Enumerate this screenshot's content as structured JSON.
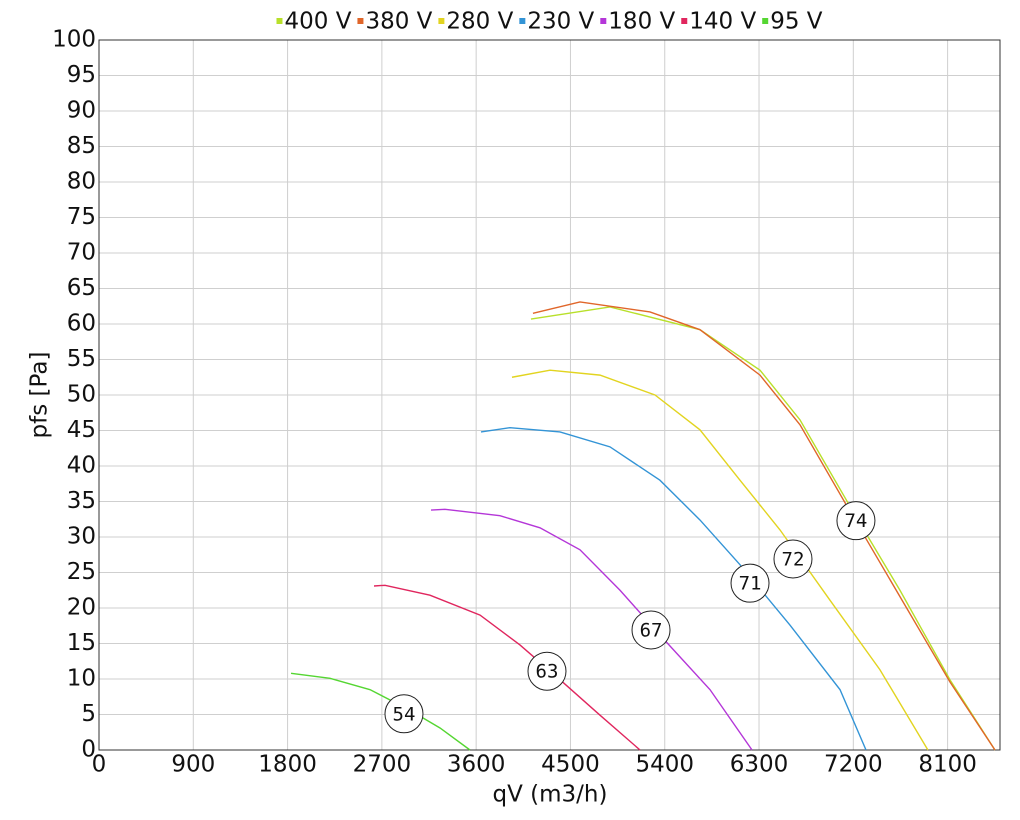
{
  "chart_data": {
    "type": "line",
    "x_label": "qV (m3/h)",
    "y_label": "pfs [Pa]",
    "xlim": [
      0,
      8600
    ],
    "ylim": [
      0,
      100
    ],
    "xticks": [
      0,
      900,
      1800,
      2700,
      3600,
      4500,
      5400,
      6300,
      7200,
      8100
    ],
    "yticks": [
      0,
      5,
      10,
      15,
      20,
      25,
      30,
      35,
      40,
      45,
      50,
      55,
      60,
      65,
      70,
      75,
      80,
      85,
      90,
      95,
      100
    ],
    "grid": true,
    "legend": "top",
    "series": [
      {
        "name": "400 V",
        "color": "#b8e02a",
        "x": [
          4123,
          4877,
          5736,
          6309,
          6691,
          7216,
          7645,
          8122,
          8552
        ],
        "values": [
          60.7,
          62.4,
          59.2,
          53.5,
          46.5,
          33.1,
          22.5,
          9.9,
          0
        ]
      },
      {
        "name": "380 V",
        "color": "#e0662a",
        "x": [
          4142,
          4591,
          5259,
          5736,
          6309,
          6691,
          7216,
          8122,
          8552
        ],
        "values": [
          61.5,
          63.1,
          61.7,
          59.2,
          52.8,
          45.8,
          32.4,
          9.6,
          0
        ]
      },
      {
        "name": "280 V",
        "color": "#e2d420",
        "x": [
          3942,
          4305,
          4782,
          5307,
          5736,
          6118,
          6500,
          6977,
          7454,
          7912
        ],
        "values": [
          52.5,
          53.5,
          52.8,
          50,
          45.1,
          38,
          31,
          21.1,
          11.3,
          0
        ]
      },
      {
        "name": "230 V",
        "color": "#3394d6",
        "x": [
          3646,
          3923,
          4400,
          4877,
          5354,
          5736,
          6118,
          6595,
          7073,
          7321
        ],
        "values": [
          44.8,
          45.4,
          44.8,
          42.7,
          38,
          32.4,
          26.1,
          17.6,
          8.5,
          0
        ]
      },
      {
        "name": "180 V",
        "color": "#b436d8",
        "x": [
          3169,
          3302,
          3827,
          4209,
          4591,
          4973,
          5354,
          5832,
          6233
        ],
        "values": [
          33.8,
          33.9,
          33,
          31.3,
          28.2,
          22.5,
          16.2,
          8.5,
          0
        ]
      },
      {
        "name": "140 V",
        "color": "#e0265e",
        "x": [
          2625,
          2730,
          3159,
          3637,
          4018,
          4400,
          4782,
          5164
        ],
        "values": [
          23.1,
          23.2,
          21.8,
          19,
          14.8,
          9.9,
          4.9,
          0
        ]
      },
      {
        "name": "95 V",
        "color": "#55d632",
        "x": [
          1833,
          2205,
          2587,
          2968,
          3255,
          3541
        ],
        "values": [
          10.8,
          10.1,
          8.5,
          5.6,
          3.1,
          0
        ]
      }
    ],
    "annotations": [
      {
        "text": "74",
        "x": 7225,
        "y": 32.3
      },
      {
        "text": "72",
        "x": 6624,
        "y": 26.9
      },
      {
        "text": "71",
        "x": 6214,
        "y": 23.5
      },
      {
        "text": "67",
        "x": 5269,
        "y": 16.9
      },
      {
        "text": "63",
        "x": 4276,
        "y": 11.1
      },
      {
        "text": "54",
        "x": 2911,
        "y": 5.1
      }
    ]
  }
}
